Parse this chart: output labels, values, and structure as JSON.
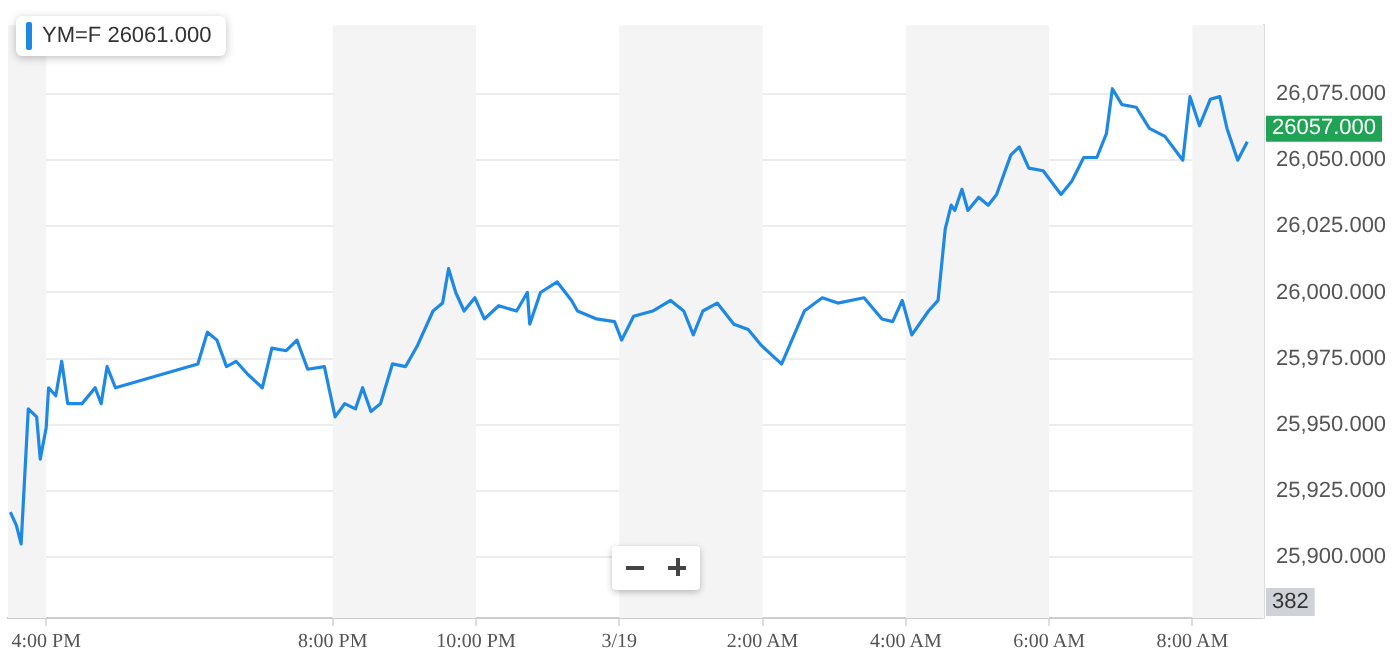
{
  "chart_data": {
    "type": "line",
    "legend": "top left",
    "grid": "y",
    "marker": "none",
    "line_style": "solid",
    "xlim": [
      "--03-18T15:28",
      "--03-19T09:00"
    ],
    "ylim": [
      25877,
      26101
    ],
    "xticks": [
      {
        "value": "--03-18T16:00",
        "label": "4:00 PM"
      },
      {
        "value": "--03-18T20:00",
        "label": "8:00 PM"
      },
      {
        "value": "--03-18T22:00",
        "label": "10:00 PM"
      },
      {
        "value": "--03-19T00:00",
        "label": "3/19"
      },
      {
        "value": "--03-19T02:00",
        "label": "2:00 AM"
      },
      {
        "value": "--03-19T04:00",
        "label": "4:00 AM"
      },
      {
        "value": "--03-19T06:00",
        "label": "6:00 AM"
      },
      {
        "value": "--03-19T08:00",
        "label": "8:00 AM"
      }
    ],
    "yticks": [
      {
        "value": 25900,
        "label": "25,900.000"
      },
      {
        "value": 25925,
        "label": "25,925.000"
      },
      {
        "value": 25950,
        "label": "25,950.000"
      },
      {
        "value": 25975,
        "label": "25,975.000"
      },
      {
        "value": 26000,
        "label": "26,000.000"
      },
      {
        "value": 26025,
        "label": "26,025.000"
      },
      {
        "value": 26050,
        "label": "26,050.000"
      },
      {
        "value": 26075,
        "label": "26,075.000"
      }
    ],
    "bands": [
      {
        "axis": "x",
        "from": "--03-18T15:28",
        "to": "--03-18T16:00",
        "color": "#f4f4f4"
      },
      {
        "axis": "x",
        "from": "--03-18T20:00",
        "to": "--03-18T22:00",
        "color": "#f4f4f4"
      },
      {
        "axis": "x",
        "from": "--03-19T00:00",
        "to": "--03-19T02:00",
        "color": "#f4f4f4"
      },
      {
        "axis": "x",
        "from": "--03-19T04:00",
        "to": "--03-19T06:00",
        "color": "#f4f4f4"
      },
      {
        "axis": "x",
        "from": "--03-19T08:00",
        "to": "--03-19T09:00",
        "color": "#f4f4f4"
      }
    ],
    "annotations": [
      "26057.000",
      "382"
    ],
    "series": [
      {
        "name": "YM=F 26061.000",
        "color": "#1e88e5",
        "x": [
          "--03-18T15:30",
          "--03-18T15:35",
          "--03-18T15:39",
          "--03-18T15:45",
          "--03-18T15:52",
          "--03-18T15:55",
          "--03-18T16:00",
          "--03-18T16:02",
          "--03-18T16:08",
          "--03-18T16:13",
          "--03-18T16:18",
          "--03-18T16:30",
          "--03-18T16:41",
          "--03-18T16:46",
          "--03-18T16:51",
          "--03-18T16:58",
          "--03-18T18:07",
          "--03-18T18:15",
          "--03-18T18:23",
          "--03-18T18:31",
          "--03-18T18:39",
          "--03-18T18:49",
          "--03-18T19:01",
          "--03-18T19:09",
          "--03-18T19:21",
          "--03-18T19:30",
          "--03-18T19:39",
          "--03-18T19:53",
          "--03-18T20:02",
          "--03-18T20:10",
          "--03-18T20:19",
          "--03-18T20:25",
          "--03-18T20:32",
          "--03-18T20:40",
          "--03-18T20:50",
          "--03-18T21:01",
          "--03-18T21:11",
          "--03-18T21:24",
          "--03-18T21:32",
          "--03-18T21:37",
          "--03-18T21:43",
          "--03-18T21:50",
          "--03-18T21:59",
          "--03-18T22:07",
          "--03-18T22:19",
          "--03-18T22:34",
          "--03-18T22:43",
          "--03-18T22:45",
          "--03-18T22:54",
          "--03-18T23:08",
          "--03-18T23:20",
          "--03-18T23:25",
          "--03-18T23:41",
          "--03-18T23:56",
          "--03-19T00:02",
          "--03-19T00:12",
          "--03-19T00:28",
          "--03-19T00:43",
          "--03-19T00:54",
          "--03-19T01:02",
          "--03-19T01:10",
          "--03-19T01:22",
          "--03-19T01:36",
          "--03-19T01:48",
          "--03-19T01:59",
          "--03-19T02:11",
          "--03-19T02:16",
          "--03-19T02:35",
          "--03-19T02:50",
          "--03-19T03:03",
          "--03-19T03:25",
          "--03-19T03:40",
          "--03-19T03:49",
          "--03-19T03:57",
          "--03-19T04:05",
          "--03-19T04:19",
          "--03-19T04:27",
          "--03-19T04:33",
          "--03-19T04:38",
          "--03-19T04:41",
          "--03-19T04:47",
          "--03-19T04:52",
          "--03-19T05:01",
          "--03-19T05:09",
          "--03-19T05:16",
          "--03-19T05:28",
          "--03-19T05:35",
          "--03-19T05:43",
          "--03-19T05:55",
          "--03-19T06:10",
          "--03-19T06:19",
          "--03-19T06:29",
          "--03-19T06:40",
          "--03-19T06:48",
          "--03-19T06:53",
          "--03-19T07:01",
          "--03-19T07:13",
          "--03-19T07:24",
          "--03-19T07:37",
          "--03-19T07:52",
          "--03-19T07:58",
          "--03-19T08:06",
          "--03-19T08:15",
          "--03-19T08:23",
          "--03-19T08:29",
          "--03-19T08:38",
          "--03-19T08:46"
        ],
        "values": [
          25917,
          25912,
          25905,
          25956,
          25953,
          25937,
          25949,
          25964,
          25961,
          25974,
          25958,
          25958,
          25964,
          25958,
          25972,
          25964,
          25973,
          25985,
          25982,
          25972,
          25974,
          25969,
          25964,
          25979,
          25978,
          25982,
          25971,
          25972,
          25953,
          25958,
          25956,
          25964,
          25955,
          25958,
          25973,
          25972,
          25980,
          25993,
          25996,
          26009,
          26000,
          25993,
          25998,
          25990,
          25995,
          25993,
          26000,
          25988,
          26000,
          26004,
          25997,
          25993,
          25990,
          25989,
          25982,
          25991,
          25993,
          25997,
          25993,
          25984,
          25993,
          25996,
          25988,
          25986,
          25980,
          25975,
          25973,
          25993,
          25998,
          25996,
          25998,
          25990,
          25989,
          25997,
          25984,
          25993,
          25997,
          26024,
          26033,
          26031,
          26039,
          26031,
          26036,
          26033,
          26037,
          26052,
          26055,
          26047,
          26046,
          26037,
          26042,
          26051,
          26051,
          26060,
          26077,
          26071,
          26070,
          26062,
          26059,
          26050,
          26074,
          26063,
          26073,
          26074,
          26062,
          26050,
          26057
        ]
      }
    ]
  }
}
